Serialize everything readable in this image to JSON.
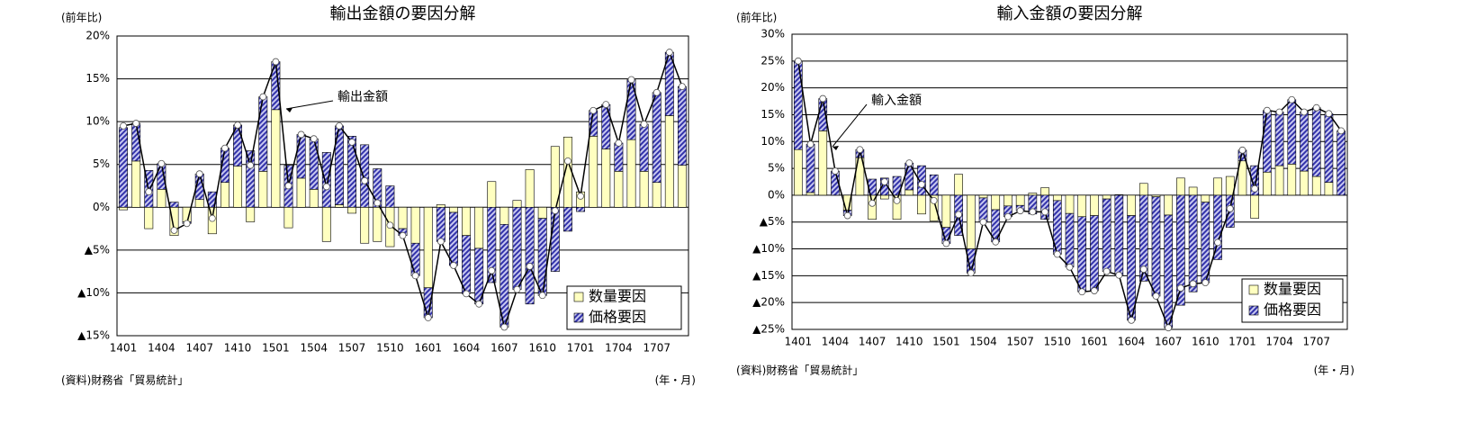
{
  "chart_data": [
    {
      "type": "bar",
      "stacked": true,
      "title": "輸出金額の要因分解",
      "y_label": "(前年比)",
      "source": "(資料)財務省「貿易統計」",
      "x_label": "(年・月)",
      "categories": [
        "1401",
        null,
        null,
        "1404",
        null,
        null,
        "1407",
        null,
        null,
        "1410",
        null,
        null,
        "1501",
        null,
        null,
        "1504",
        null,
        null,
        "1507",
        null,
        null,
        "1510",
        null,
        null,
        "1601",
        null,
        null,
        "1604",
        null,
        null,
        "1607",
        null,
        null,
        "1610",
        null,
        null,
        "1701",
        null,
        null,
        "1704",
        null,
        null,
        "1707",
        null,
        null
      ],
      "series": [
        {
          "name": "数量要因",
          "color": "#ffffc0",
          "values": [
            -0.3,
            5.4,
            -2.5,
            2.1,
            -3.3,
            -1.7,
            0.9,
            -3.1,
            2.9,
            4.8,
            -1.7,
            4.2,
            11.4,
            -2.4,
            3.4,
            2.1,
            -4.0,
            0.3,
            -0.7,
            -4.2,
            -4.0,
            -4.6,
            -2.5,
            -4.2,
            -9.4,
            0.3,
            -0.6,
            -3.3,
            -4.8,
            3.0,
            -2.0,
            0.8,
            4.4,
            -1.3,
            7.1,
            8.2,
            1.8,
            8.3,
            6.8,
            4.2,
            7.9,
            4.2,
            2.9,
            10.7,
            4.9
          ]
        },
        {
          "name": "価格要因",
          "color": "#3333aa",
          "pattern": "hatch",
          "values": [
            9.3,
            4.4,
            4.3,
            3.0,
            0.6,
            -0.2,
            3.0,
            1.8,
            4.0,
            4.8,
            6.6,
            8.7,
            5.6,
            4.9,
            5.1,
            5.9,
            6.4,
            9.2,
            8.3,
            7.3,
            4.5,
            2.5,
            -0.8,
            -3.8,
            -3.5,
            -4.0,
            -6.2,
            -6.8,
            -6.5,
            -8.8,
            -12.0,
            -9.6,
            -11.3,
            -9.0,
            -7.5,
            -2.8,
            -0.5,
            3.0,
            5.2,
            3.3,
            7.0,
            5.5,
            10.5,
            7.4,
            9.2
          ]
        }
      ],
      "line": {
        "label": "輸出金額",
        "color": "#000000",
        "values": [
          9.5,
          9.8,
          1.8,
          5.1,
          -2.7,
          -1.9,
          3.9,
          -1.3,
          6.9,
          9.6,
          4.9,
          12.9,
          17.0,
          2.5,
          8.5,
          8.0,
          2.4,
          9.5,
          7.6,
          3.1,
          0.5,
          -2.1,
          -3.3,
          -8.0,
          -12.9,
          -4.0,
          -6.8,
          -10.1,
          -11.3,
          -7.4,
          -14.0,
          -9.6,
          -6.9,
          -10.3,
          -0.4,
          5.4,
          1.3,
          11.3,
          12.0,
          7.5,
          14.9,
          9.7,
          13.4,
          18.1,
          14.1
        ]
      },
      "ylim": [
        -15,
        20
      ],
      "yticks": [
        {
          "value": -15,
          "label": "▲15%"
        },
        {
          "value": -10,
          "label": "▲10%"
        },
        {
          "value": -5,
          "label": "▲5%"
        },
        {
          "value": 0,
          "label": "0%"
        },
        {
          "value": 5,
          "label": "5%"
        },
        {
          "value": 10,
          "label": "10%"
        },
        {
          "value": 15,
          "label": "15%"
        },
        {
          "value": 20,
          "label": "20%"
        }
      ],
      "grid": true,
      "legend": "lower right"
    },
    {
      "type": "bar",
      "stacked": true,
      "title": "輸入金額の要因分解",
      "y_label": "(前年比)",
      "source": "(資料)財務省「貿易統計」",
      "x_label": "(年・月)",
      "categories": [
        "1401",
        null,
        null,
        "1404",
        null,
        null,
        "1407",
        null,
        null,
        "1410",
        null,
        null,
        "1501",
        null,
        null,
        "1504",
        null,
        null,
        "1507",
        null,
        null,
        "1510",
        null,
        null,
        "1601",
        null,
        null,
        "1604",
        null,
        null,
        "1607",
        null,
        null,
        "1610",
        null,
        null,
        "1701",
        null,
        null,
        "1704",
        null,
        null,
        "1707",
        null,
        null
      ],
      "series": [
        {
          "name": "数量要因",
          "color": "#ffffc0",
          "values": [
            8.5,
            0.5,
            12.0,
            0.0,
            -2.8,
            7.0,
            -4.5,
            -0.7,
            -4.5,
            1.0,
            -3.5,
            -4.8,
            -6.0,
            3.9,
            -10.0,
            -0.5,
            -2.7,
            -2.0,
            -1.9,
            0.4,
            1.4,
            -1.0,
            -3.4,
            -4.0,
            -3.8,
            -0.7,
            0.1,
            -3.8,
            2.2,
            -0.3,
            -3.7,
            3.2,
            1.5,
            -1.3,
            3.2,
            3.5,
            6.4,
            -4.3,
            4.3,
            5.5,
            5.8,
            4.5,
            3.5,
            2.4,
            0.0
          ]
        },
        {
          "name": "価格要因",
          "color": "#3333aa",
          "pattern": "hatch",
          "values": [
            16.5,
            9.0,
            6.0,
            4.5,
            -1.0,
            1.5,
            3.0,
            3.2,
            3.5,
            5.0,
            5.5,
            3.8,
            -3.0,
            -7.5,
            -4.5,
            -4.5,
            -6.0,
            -2.0,
            -1.0,
            -3.5,
            -4.5,
            -10.0,
            -10.0,
            -14.0,
            -14.0,
            -13.5,
            -15.0,
            -19.5,
            -16.0,
            -18.5,
            -21.0,
            -20.5,
            -18.0,
            -15.0,
            -12.0,
            -6.0,
            2.0,
            5.5,
            11.5,
            10.0,
            12.0,
            11.0,
            12.8,
            12.8,
            12.0
          ]
        }
      ],
      "line": {
        "label": "輸入金額",
        "color": "#000000",
        "values": [
          25.0,
          9.5,
          18.0,
          4.5,
          -3.8,
          8.5,
          -1.5,
          2.5,
          -1.0,
          6.0,
          2.0,
          -1.0,
          -9.0,
          -3.6,
          -14.5,
          -5.0,
          -8.7,
          -4.0,
          -2.9,
          -3.1,
          -3.1,
          -11.0,
          -13.4,
          -18.0,
          -17.8,
          -14.2,
          -14.9,
          -23.3,
          -13.8,
          -18.8,
          -24.7,
          -17.3,
          -16.5,
          -16.3,
          -8.8,
          -2.5,
          8.4,
          1.2,
          15.8,
          15.5,
          17.8,
          15.5,
          16.3,
          15.2,
          12.0
        ]
      },
      "ylim": [
        -25,
        30
      ],
      "yticks": [
        {
          "value": -25,
          "label": "▲25%"
        },
        {
          "value": -20,
          "label": "▲20%"
        },
        {
          "value": -15,
          "label": "▲15%"
        },
        {
          "value": -10,
          "label": "▲10%"
        },
        {
          "value": -5,
          "label": "▲5%"
        },
        {
          "value": 0,
          "label": "0%"
        },
        {
          "value": 5,
          "label": "5%"
        },
        {
          "value": 10,
          "label": "10%"
        },
        {
          "value": 15,
          "label": "15%"
        },
        {
          "value": 20,
          "label": "20%"
        },
        {
          "value": 25,
          "label": "25%"
        },
        {
          "value": 30,
          "label": "30%"
        }
      ],
      "grid": true,
      "legend": "lower right"
    }
  ]
}
